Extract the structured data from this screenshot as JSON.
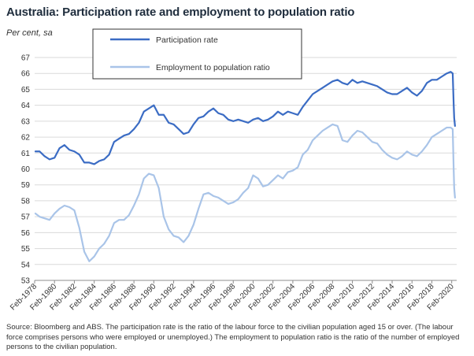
{
  "title": "Australia: Participation rate and employment to population ratio",
  "unit_label": "Per cent, sa",
  "source": "Source: Bloomberg and ABS.  The participation rate is the ratio of the labour force to the civilian population aged 15 or over.  (The labour force comprises persons who were employed or unemployed.)  The employment to population ratio is the ratio of the number of employed persons to the civilian population.",
  "chart_data": {
    "type": "line",
    "ylim": [
      53,
      67
    ],
    "yticks": [
      53,
      54,
      55,
      56,
      57,
      58,
      59,
      60,
      61,
      62,
      63,
      64,
      65,
      66,
      67
    ],
    "xlim": [
      1978.0,
      2020.5
    ],
    "xticks": [
      1978,
      1980,
      1982,
      1984,
      1986,
      1988,
      1990,
      1992,
      1994,
      1996,
      1998,
      2000,
      2002,
      2004,
      2006,
      2008,
      2010,
      2012,
      2014,
      2016,
      2018,
      2020
    ],
    "xtick_labels": [
      "Feb-1978",
      "Feb-1980",
      "Feb-1982",
      "Feb-1984",
      "Feb-1986",
      "Feb-1988",
      "Feb-1990",
      "Feb-1992",
      "Feb-1994",
      "Feb-1996",
      "Feb-1998",
      "Feb-2000",
      "Feb-2002",
      "Feb-2004",
      "Feb-2006",
      "Feb-2008",
      "Feb-2010",
      "Feb-2012",
      "Feb-2014",
      "Feb-2016",
      "Feb-2018",
      "Feb-2020"
    ],
    "legend": "top-center",
    "series": [
      {
        "name": "Participation rate",
        "color": "#3b6cc4",
        "x": [
          1978.08,
          1978.5,
          1979.0,
          1979.5,
          1980.0,
          1980.5,
          1981.0,
          1981.5,
          1982.0,
          1982.5,
          1983.0,
          1983.5,
          1984.0,
          1984.5,
          1985.0,
          1985.5,
          1986.0,
          1986.5,
          1987.0,
          1987.5,
          1988.0,
          1988.5,
          1989.0,
          1989.5,
          1990.0,
          1990.5,
          1991.0,
          1991.5,
          1992.0,
          1992.5,
          1993.0,
          1993.5,
          1994.0,
          1994.5,
          1995.0,
          1995.5,
          1996.0,
          1996.5,
          1997.0,
          1997.5,
          1998.0,
          1998.5,
          1999.0,
          1999.5,
          2000.0,
          2000.5,
          2001.0,
          2001.5,
          2002.0,
          2002.5,
          2003.0,
          2003.5,
          2004.0,
          2004.5,
          2005.0,
          2005.5,
          2006.0,
          2006.5,
          2007.0,
          2007.5,
          2008.0,
          2008.5,
          2009.0,
          2009.5,
          2010.0,
          2010.5,
          2011.0,
          2011.5,
          2012.0,
          2012.5,
          2013.0,
          2013.5,
          2014.0,
          2014.5,
          2015.0,
          2015.5,
          2016.0,
          2016.5,
          2017.0,
          2017.5,
          2018.0,
          2018.5,
          2019.0,
          2019.5,
          2019.9,
          2020.1,
          2020.2,
          2020.25,
          2020.33
        ],
        "y": [
          61.1,
          61.1,
          60.8,
          60.6,
          60.7,
          61.3,
          61.5,
          61.2,
          61.1,
          60.9,
          60.4,
          60.4,
          60.3,
          60.5,
          60.6,
          60.9,
          61.7,
          61.9,
          62.1,
          62.2,
          62.5,
          62.9,
          63.6,
          63.8,
          64.0,
          63.4,
          63.4,
          62.9,
          62.8,
          62.5,
          62.2,
          62.3,
          62.8,
          63.2,
          63.3,
          63.6,
          63.8,
          63.5,
          63.4,
          63.1,
          63.0,
          63.1,
          63.0,
          62.9,
          63.1,
          63.2,
          63.0,
          63.1,
          63.3,
          63.6,
          63.4,
          63.6,
          63.5,
          63.4,
          63.9,
          64.3,
          64.7,
          64.9,
          65.1,
          65.3,
          65.5,
          65.6,
          65.4,
          65.3,
          65.6,
          65.4,
          65.5,
          65.4,
          65.3,
          65.2,
          65.0,
          64.8,
          64.7,
          64.7,
          64.9,
          65.1,
          64.8,
          64.6,
          64.9,
          65.4,
          65.6,
          65.6,
          65.8,
          66.0,
          66.1,
          66.0,
          64.0,
          63.2,
          62.7
        ]
      },
      {
        "name": "Employment to population ratio",
        "color": "#a9c4e8",
        "x": [
          1978.08,
          1978.5,
          1979.0,
          1979.5,
          1980.0,
          1980.5,
          1981.0,
          1981.5,
          1982.0,
          1982.5,
          1983.0,
          1983.5,
          1984.0,
          1984.5,
          1985.0,
          1985.5,
          1986.0,
          1986.5,
          1987.0,
          1987.5,
          1988.0,
          1988.5,
          1989.0,
          1989.5,
          1990.0,
          1990.5,
          1991.0,
          1991.5,
          1992.0,
          1992.5,
          1993.0,
          1993.5,
          1994.0,
          1994.5,
          1995.0,
          1995.5,
          1996.0,
          1996.5,
          1997.0,
          1997.5,
          1998.0,
          1998.5,
          1999.0,
          1999.5,
          2000.0,
          2000.5,
          2001.0,
          2001.5,
          2002.0,
          2002.5,
          2003.0,
          2003.5,
          2004.0,
          2004.5,
          2005.0,
          2005.5,
          2006.0,
          2006.5,
          2007.0,
          2007.5,
          2008.0,
          2008.5,
          2009.0,
          2009.5,
          2010.0,
          2010.5,
          2011.0,
          2011.5,
          2012.0,
          2012.5,
          2013.0,
          2013.5,
          2014.0,
          2014.5,
          2015.0,
          2015.5,
          2016.0,
          2016.5,
          2017.0,
          2017.5,
          2018.0,
          2018.5,
          2019.0,
          2019.5,
          2019.9,
          2020.1,
          2020.2,
          2020.25,
          2020.33
        ],
        "y": [
          57.2,
          57.0,
          56.9,
          56.8,
          57.2,
          57.5,
          57.7,
          57.6,
          57.4,
          56.3,
          54.8,
          54.2,
          54.5,
          55.0,
          55.3,
          55.8,
          56.6,
          56.8,
          56.8,
          57.1,
          57.7,
          58.4,
          59.4,
          59.7,
          59.6,
          58.8,
          57.0,
          56.2,
          55.8,
          55.7,
          55.4,
          55.8,
          56.5,
          57.5,
          58.4,
          58.5,
          58.3,
          58.2,
          58.0,
          57.8,
          57.9,
          58.1,
          58.5,
          58.8,
          59.6,
          59.4,
          58.9,
          59.0,
          59.3,
          59.6,
          59.4,
          59.8,
          59.9,
          60.1,
          60.9,
          61.2,
          61.8,
          62.1,
          62.4,
          62.6,
          62.8,
          62.7,
          61.8,
          61.7,
          62.1,
          62.4,
          62.3,
          62.0,
          61.7,
          61.6,
          61.2,
          60.9,
          60.7,
          60.6,
          60.8,
          61.1,
          60.9,
          60.8,
          61.1,
          61.5,
          62.0,
          62.2,
          62.4,
          62.6,
          62.6,
          62.5,
          59.9,
          58.8,
          58.2
        ]
      }
    ]
  }
}
